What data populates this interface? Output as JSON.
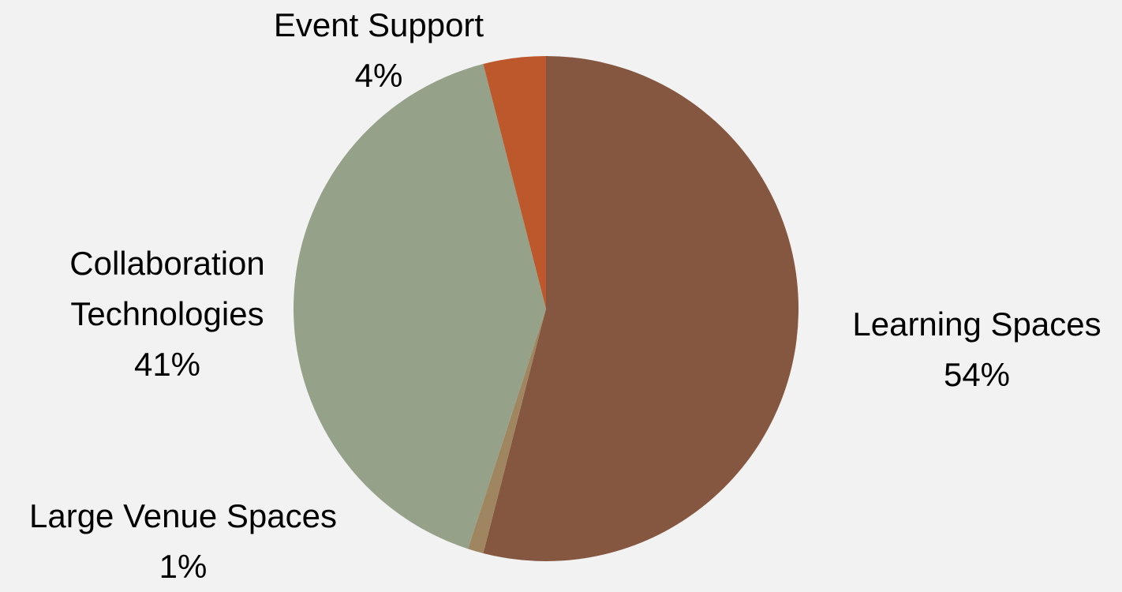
{
  "chart_data": {
    "type": "pie",
    "categories": [
      "Learning Spaces",
      "Large Venue Spaces",
      "Collaboration Technologies",
      "Event Support"
    ],
    "values": [
      54,
      1,
      41,
      4
    ],
    "value_labels": [
      "54%",
      "1%",
      "41%",
      "4%"
    ],
    "colors": [
      "#855640",
      "#a08660",
      "#96a189",
      "#bd582c"
    ]
  }
}
